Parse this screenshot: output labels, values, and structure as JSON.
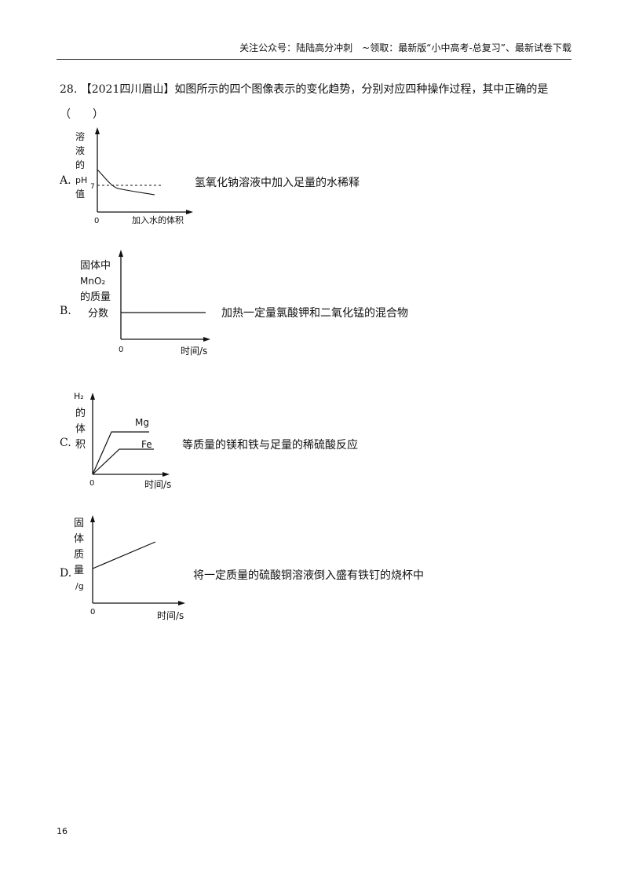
{
  "header": {
    "text": "关注公众号：陆陆高分冲刺　~领取：最新版“小中高考-总复习”、最新试卷下载"
  },
  "question": {
    "number": "28.",
    "text": "【2021四川眉山】如图所示的四个图像表示的变化趋势，分别对应四种操作过程，其中正确的是（　　）"
  },
  "options": {
    "A": {
      "letter": "A.",
      "description": "氢氧化钠溶液中加入足量的水稀释",
      "y_label": [
        "溶",
        "液",
        "的",
        "pH",
        "值"
      ],
      "x_label": "加入水的体积",
      "origin": "0",
      "ref_value": "7"
    },
    "B": {
      "letter": "B.",
      "description": "加热一定量氯酸钾和二氧化锰的混合物",
      "y_label": [
        "固体中",
        "MnO₂",
        "的质量",
        "分数"
      ],
      "x_label": "时间/s",
      "origin": "0"
    },
    "C": {
      "letter": "C.",
      "description": "等质量的镁和铁与足量的稀硫酸反应",
      "y_label": [
        "H₂",
        "的",
        "体",
        "积"
      ],
      "x_label": "时间/s",
      "origin": "0",
      "series": [
        "Mg",
        "Fe"
      ]
    },
    "D": {
      "letter": "D.",
      "description": "将一定质量的硫酸铜溶液倒入盛有铁钉的烧杯中",
      "y_label": [
        "固",
        "体",
        "质",
        "量",
        "/g"
      ],
      "x_label": "时间/s",
      "origin": "0"
    }
  },
  "page_number": "16"
}
